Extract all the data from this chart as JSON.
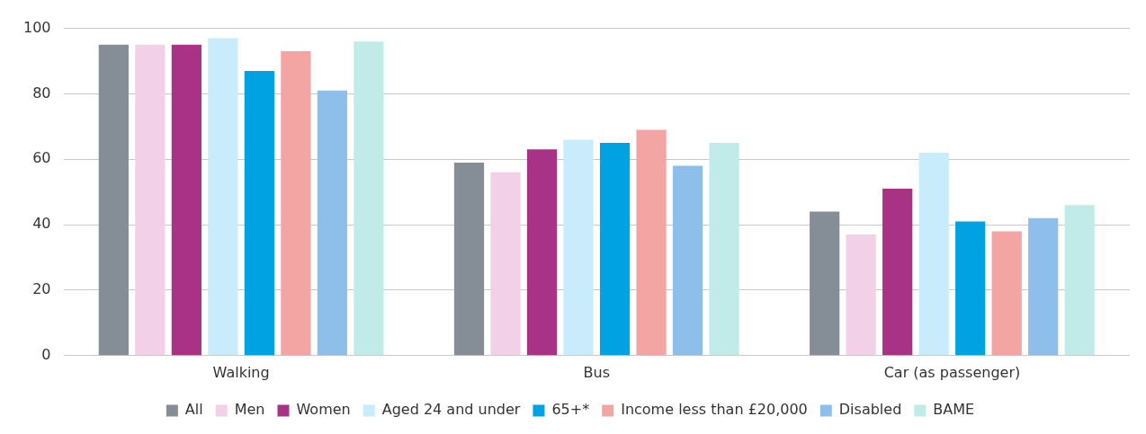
{
  "chart_data": {
    "type": "bar",
    "categories": [
      "Walking",
      "Bus",
      "Car (as passenger)"
    ],
    "series": [
      {
        "name": "All",
        "color": "#858d97",
        "values": [
          95,
          59,
          44
        ]
      },
      {
        "name": "Men",
        "color": "#f2d0e8",
        "values": [
          95,
          56,
          37
        ]
      },
      {
        "name": "Women",
        "color": "#a83285",
        "values": [
          95,
          63,
          51
        ]
      },
      {
        "name": "Aged 24 and under",
        "color": "#c8ecfb",
        "values": [
          97,
          66,
          62
        ]
      },
      {
        "name": "65+*",
        "color": "#00a2e1",
        "values": [
          87,
          65,
          41
        ]
      },
      {
        "name": "Income less than £20,000",
        "color": "#f2a5a2",
        "values": [
          93,
          69,
          38
        ]
      },
      {
        "name": "Disabled",
        "color": "#8ebfeb",
        "values": [
          81,
          58,
          42
        ]
      },
      {
        "name": "BAME",
        "color": "#c0ebe9",
        "values": [
          96,
          65,
          46
        ]
      }
    ],
    "ylim": [
      0,
      100
    ],
    "yticks": [
      0,
      20,
      40,
      60,
      80,
      100
    ],
    "grid": "y",
    "legend": "bottom"
  }
}
